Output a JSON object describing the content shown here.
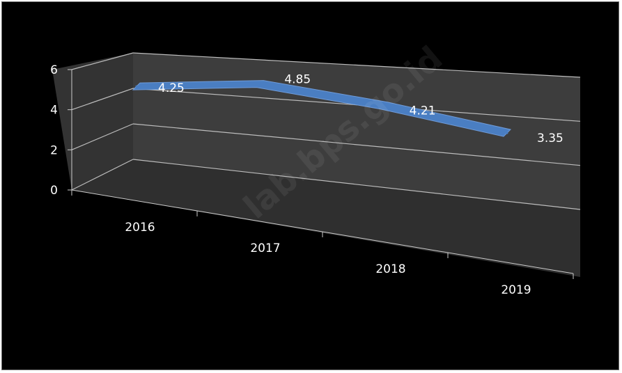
{
  "chart_data": {
    "type": "line",
    "style": "3d",
    "title": "",
    "xlabel": "",
    "ylabel": "",
    "categories": [
      "2016",
      "2017",
      "2018",
      "2019"
    ],
    "series": [
      {
        "values": [
          4.25,
          4.85,
          4.21,
          3.35
        ],
        "color": "#4a7ec2"
      }
    ],
    "yticks": [
      0,
      2,
      4,
      6
    ],
    "ylim": [
      0,
      6
    ],
    "grid": true,
    "legend": "none",
    "data_labels": [
      "4.25",
      "4.85",
      "4.21",
      "3.35"
    ],
    "watermark": "lab.bps.go.id"
  },
  "colors": {
    "background": "#000000",
    "wall": "#3d3d3d",
    "floor": "#2f2f2f",
    "gridline": "#bdbdbd",
    "axis_text": "#ffffff",
    "series": "#4a7ec2"
  }
}
